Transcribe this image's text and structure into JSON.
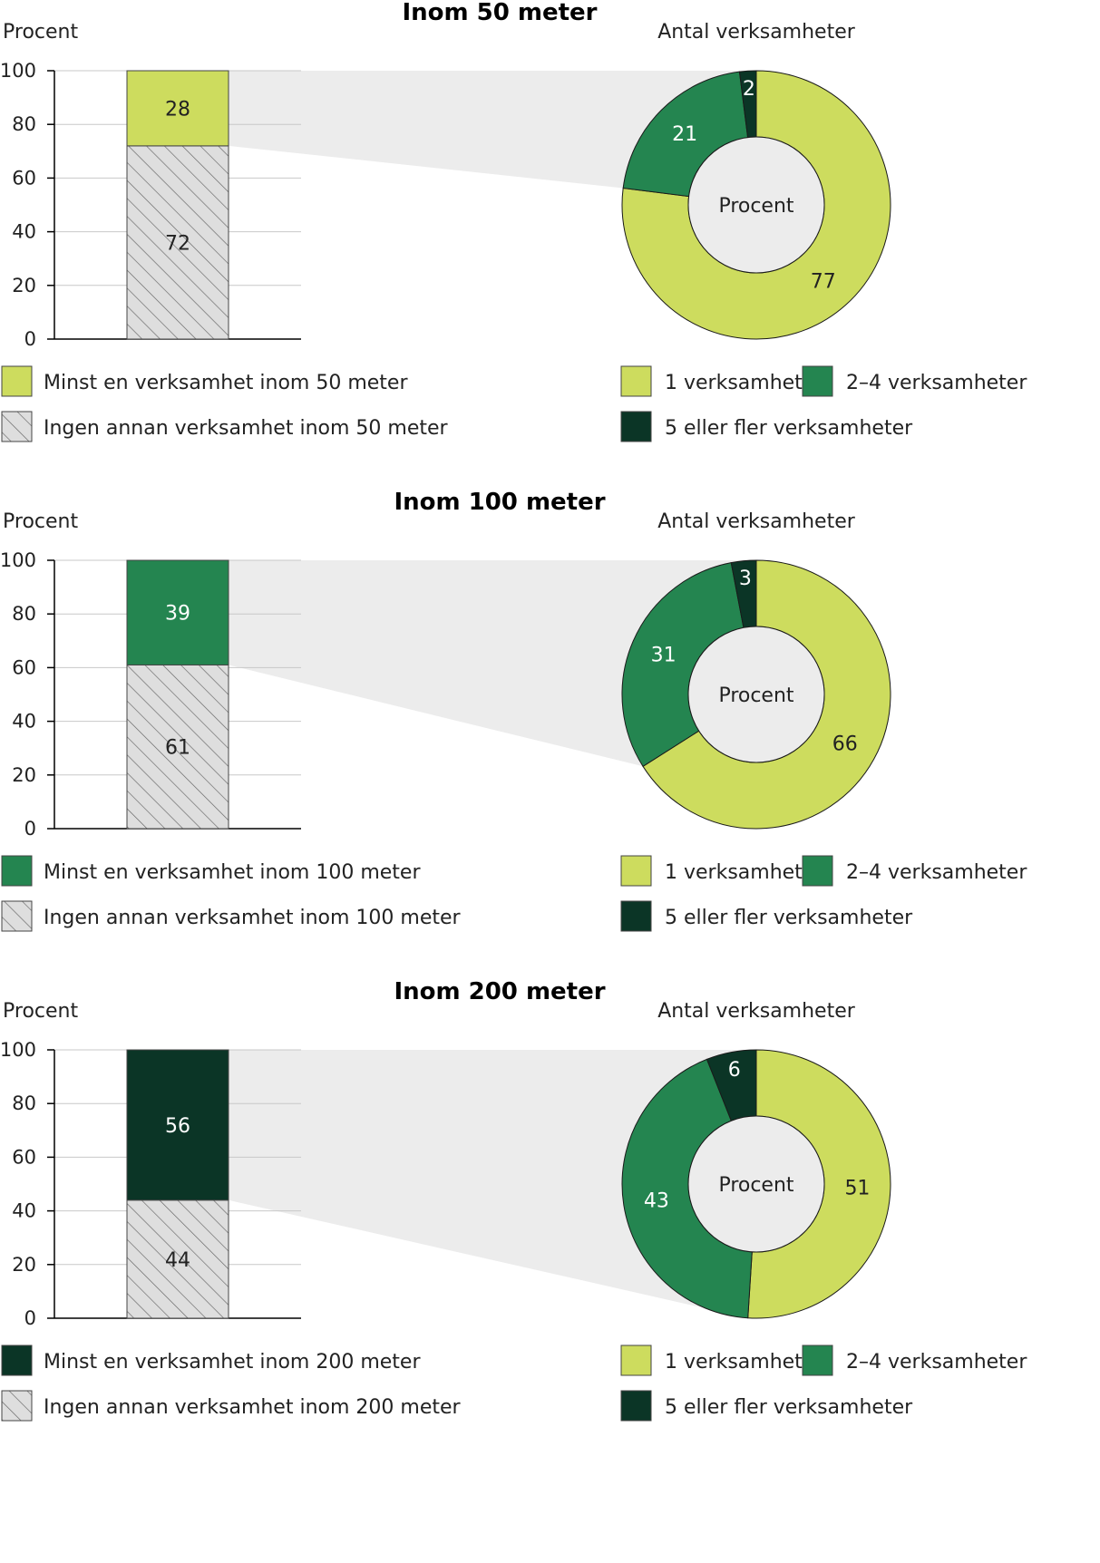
{
  "colors": {
    "light_green": "#cddc5e",
    "mid_green": "#248550",
    "dark_green": "#0b3526",
    "hatch_bg": "#dedede",
    "hatch_line": "#666666",
    "connector": "#ececec",
    "inner_circle": "#ececec"
  },
  "chart_data": [
    {
      "type": "bar",
      "title": "Inom 50 meter",
      "ylabel": "Procent",
      "ylim": [
        0,
        100
      ],
      "yticks": [
        "0",
        "20",
        "40",
        "60",
        "80",
        "100"
      ],
      "series": [
        {
          "name": "Ingen annan verksamhet inom 50 meter",
          "value": 72,
          "label": "72",
          "style": "hatch"
        },
        {
          "name": "Minst en verksamhet inom 50 meter",
          "value": 28,
          "label": "28",
          "style": "light_green"
        }
      ],
      "donut": {
        "type": "pie",
        "title": "Antal verksamheter",
        "center_label": "Procent",
        "slices": [
          {
            "name": "1 verksamhet",
            "value": 77,
            "label": "77",
            "color": "light_green"
          },
          {
            "name": "2–4 verksamheter",
            "value": 21,
            "label": "21",
            "color": "mid_green"
          },
          {
            "name": "5 eller fler verksamheter",
            "value": 2,
            "label": "2",
            "color": "dark_green"
          }
        ]
      }
    },
    {
      "type": "bar",
      "title": "Inom 100 meter",
      "ylabel": "Procent",
      "ylim": [
        0,
        100
      ],
      "yticks": [
        "0",
        "20",
        "40",
        "60",
        "80",
        "100"
      ],
      "series": [
        {
          "name": "Ingen annan verksamhet inom 100 meter",
          "value": 61,
          "label": "61",
          "style": "hatch"
        },
        {
          "name": "Minst en verksamhet inom 100 meter",
          "value": 39,
          "label": "39",
          "style": "mid_green"
        }
      ],
      "donut": {
        "type": "pie",
        "title": "Antal verksamheter",
        "center_label": "Procent",
        "slices": [
          {
            "name": "1 verksamhet",
            "value": 66,
            "label": "66",
            "color": "light_green"
          },
          {
            "name": "2–4 verksamheter",
            "value": 31,
            "label": "31",
            "color": "mid_green"
          },
          {
            "name": "5 eller fler verksamheter",
            "value": 3,
            "label": "3",
            "color": "dark_green"
          }
        ]
      }
    },
    {
      "type": "bar",
      "title": "Inom 200 meter",
      "ylabel": "Procent",
      "ylim": [
        0,
        100
      ],
      "yticks": [
        "0",
        "20",
        "40",
        "60",
        "80",
        "100"
      ],
      "series": [
        {
          "name": "Ingen annan verksamhet inom 200 meter",
          "value": 44,
          "label": "44",
          "style": "hatch"
        },
        {
          "name": "Minst en verksamhet inom 200 meter",
          "value": 56,
          "label": "56",
          "style": "dark_green"
        }
      ],
      "donut": {
        "type": "pie",
        "title": "Antal verksamheter",
        "center_label": "Procent",
        "slices": [
          {
            "name": "1 verksamhet",
            "value": 51,
            "label": "51",
            "color": "light_green"
          },
          {
            "name": "2–4 verksamheter",
            "value": 43,
            "label": "43",
            "color": "mid_green"
          },
          {
            "name": "5 eller fler verksamheter",
            "value": 6,
            "label": "6",
            "color": "dark_green"
          }
        ]
      }
    }
  ]
}
